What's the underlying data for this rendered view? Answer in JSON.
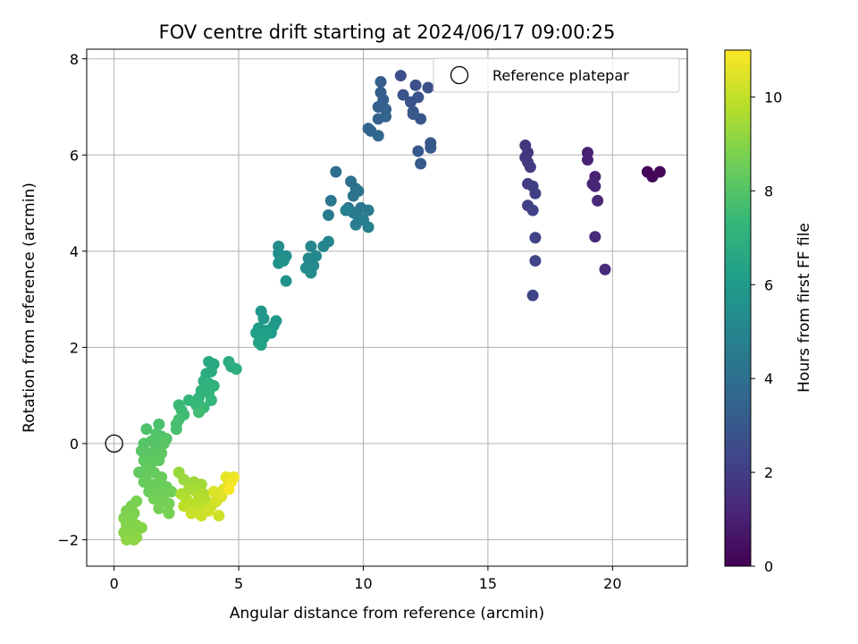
{
  "chart_data": {
    "type": "scatter",
    "title": "FOV centre drift starting at 2024/06/17 09:00:25",
    "xlabel": "Angular distance from reference (arcmin)",
    "ylabel": "Rotation from reference (arcmin)",
    "xlim": [
      -1.1,
      23.0
    ],
    "ylim": [
      -2.55,
      8.2
    ],
    "xticks": [
      0,
      5,
      10,
      15,
      20
    ],
    "yticks": [
      -2,
      0,
      2,
      4,
      6,
      8
    ],
    "grid": true,
    "legend": {
      "position": "top-right",
      "entries": [
        "Reference platepar"
      ]
    },
    "colorbar": {
      "label": "Hours from first FF file",
      "range": [
        0,
        11.0
      ],
      "ticks": [
        0,
        2,
        4,
        6,
        8,
        10
      ],
      "colormap": "viridis"
    },
    "reference_point": {
      "x": 0,
      "y": 0
    },
    "points": [
      {
        "x": 21.4,
        "y": 5.65,
        "h": 0.1
      },
      {
        "x": 21.6,
        "y": 5.55,
        "h": 0.15
      },
      {
        "x": 21.9,
        "y": 5.65,
        "h": 0.2
      },
      {
        "x": 19.0,
        "y": 6.05,
        "h": 1.0
      },
      {
        "x": 19.0,
        "y": 5.9,
        "h": 1.05
      },
      {
        "x": 19.3,
        "y": 5.55,
        "h": 1.1
      },
      {
        "x": 19.2,
        "y": 5.4,
        "h": 1.15
      },
      {
        "x": 19.3,
        "y": 5.35,
        "h": 1.2
      },
      {
        "x": 19.4,
        "y": 5.05,
        "h": 1.25
      },
      {
        "x": 19.3,
        "y": 4.3,
        "h": 1.3
      },
      {
        "x": 19.7,
        "y": 3.62,
        "h": 1.35
      },
      {
        "x": 16.5,
        "y": 6.2,
        "h": 1.7
      },
      {
        "x": 16.6,
        "y": 6.05,
        "h": 1.75
      },
      {
        "x": 16.5,
        "y": 5.95,
        "h": 1.8
      },
      {
        "x": 16.6,
        "y": 5.85,
        "h": 1.85
      },
      {
        "x": 16.7,
        "y": 5.75,
        "h": 1.9
      },
      {
        "x": 16.6,
        "y": 5.4,
        "h": 1.95
      },
      {
        "x": 16.8,
        "y": 5.35,
        "h": 2.0
      },
      {
        "x": 16.9,
        "y": 5.2,
        "h": 2.05
      },
      {
        "x": 16.6,
        "y": 4.95,
        "h": 2.1
      },
      {
        "x": 16.8,
        "y": 4.85,
        "h": 2.15
      },
      {
        "x": 16.9,
        "y": 4.28,
        "h": 2.2
      },
      {
        "x": 16.9,
        "y": 3.8,
        "h": 2.25
      },
      {
        "x": 16.8,
        "y": 3.08,
        "h": 2.3
      },
      {
        "x": 11.5,
        "y": 7.65,
        "h": 2.6
      },
      {
        "x": 12.1,
        "y": 7.45,
        "h": 2.65
      },
      {
        "x": 12.6,
        "y": 7.4,
        "h": 2.7
      },
      {
        "x": 11.6,
        "y": 7.25,
        "h": 2.75
      },
      {
        "x": 11.9,
        "y": 7.1,
        "h": 2.8
      },
      {
        "x": 12.2,
        "y": 7.2,
        "h": 2.85
      },
      {
        "x": 12.0,
        "y": 6.9,
        "h": 2.9
      },
      {
        "x": 12.3,
        "y": 6.75,
        "h": 2.95
      },
      {
        "x": 12.0,
        "y": 6.85,
        "h": 3.0
      },
      {
        "x": 12.7,
        "y": 6.25,
        "h": 3.0
      },
      {
        "x": 12.7,
        "y": 6.15,
        "h": 3.05
      },
      {
        "x": 12.2,
        "y": 6.08,
        "h": 3.1
      },
      {
        "x": 12.3,
        "y": 5.82,
        "h": 3.15
      },
      {
        "x": 10.7,
        "y": 7.52,
        "h": 3.2
      },
      {
        "x": 10.7,
        "y": 7.3,
        "h": 3.25
      },
      {
        "x": 10.8,
        "y": 7.15,
        "h": 3.3
      },
      {
        "x": 10.6,
        "y": 7.0,
        "h": 3.35
      },
      {
        "x": 10.9,
        "y": 6.95,
        "h": 3.4
      },
      {
        "x": 10.6,
        "y": 6.75,
        "h": 3.45
      },
      {
        "x": 10.9,
        "y": 6.8,
        "h": 3.5
      },
      {
        "x": 10.3,
        "y": 6.5,
        "h": 3.55
      },
      {
        "x": 10.2,
        "y": 6.55,
        "h": 3.6
      },
      {
        "x": 10.6,
        "y": 6.4,
        "h": 3.65
      },
      {
        "x": 8.9,
        "y": 5.65,
        "h": 4.0
      },
      {
        "x": 9.5,
        "y": 5.45,
        "h": 4.1
      },
      {
        "x": 9.7,
        "y": 5.3,
        "h": 4.15
      },
      {
        "x": 9.8,
        "y": 5.25,
        "h": 4.2
      },
      {
        "x": 9.6,
        "y": 5.15,
        "h": 4.25
      },
      {
        "x": 8.7,
        "y": 5.05,
        "h": 4.3
      },
      {
        "x": 9.9,
        "y": 4.9,
        "h": 4.35
      },
      {
        "x": 9.4,
        "y": 4.9,
        "h": 4.4
      },
      {
        "x": 10.2,
        "y": 4.85,
        "h": 4.45
      },
      {
        "x": 9.6,
        "y": 4.8,
        "h": 4.5
      },
      {
        "x": 8.6,
        "y": 4.75,
        "h": 4.55
      },
      {
        "x": 9.8,
        "y": 4.7,
        "h": 4.6
      },
      {
        "x": 10.0,
        "y": 4.65,
        "h": 4.65
      },
      {
        "x": 9.7,
        "y": 4.55,
        "h": 4.7
      },
      {
        "x": 10.2,
        "y": 4.5,
        "h": 4.75
      },
      {
        "x": 9.3,
        "y": 4.85,
        "h": 4.8
      },
      {
        "x": 8.6,
        "y": 4.2,
        "h": 5.0
      },
      {
        "x": 8.4,
        "y": 4.1,
        "h": 5.05
      },
      {
        "x": 7.9,
        "y": 4.1,
        "h": 5.1
      },
      {
        "x": 7.8,
        "y": 3.85,
        "h": 5.15
      },
      {
        "x": 8.1,
        "y": 3.9,
        "h": 5.2
      },
      {
        "x": 8.0,
        "y": 3.7,
        "h": 5.25
      },
      {
        "x": 7.7,
        "y": 3.65,
        "h": 5.3
      },
      {
        "x": 7.9,
        "y": 3.55,
        "h": 5.35
      },
      {
        "x": 6.6,
        "y": 4.1,
        "h": 5.4
      },
      {
        "x": 6.6,
        "y": 3.95,
        "h": 5.45
      },
      {
        "x": 6.9,
        "y": 3.9,
        "h": 5.5
      },
      {
        "x": 6.6,
        "y": 3.75,
        "h": 5.55
      },
      {
        "x": 6.8,
        "y": 3.8,
        "h": 5.6
      },
      {
        "x": 6.9,
        "y": 3.38,
        "h": 5.65
      },
      {
        "x": 5.9,
        "y": 2.75,
        "h": 5.8
      },
      {
        "x": 6.0,
        "y": 2.6,
        "h": 5.85
      },
      {
        "x": 6.5,
        "y": 2.55,
        "h": 5.9
      },
      {
        "x": 6.4,
        "y": 2.45,
        "h": 5.95
      },
      {
        "x": 5.8,
        "y": 2.4,
        "h": 6.0
      },
      {
        "x": 6.1,
        "y": 2.35,
        "h": 6.05
      },
      {
        "x": 6.3,
        "y": 2.3,
        "h": 6.1
      },
      {
        "x": 5.7,
        "y": 2.3,
        "h": 6.15
      },
      {
        "x": 6.0,
        "y": 2.2,
        "h": 6.2
      },
      {
        "x": 5.8,
        "y": 2.1,
        "h": 6.25
      },
      {
        "x": 5.9,
        "y": 2.05,
        "h": 6.3
      },
      {
        "x": 3.8,
        "y": 1.7,
        "h": 6.6
      },
      {
        "x": 4.0,
        "y": 1.65,
        "h": 6.65
      },
      {
        "x": 3.9,
        "y": 1.5,
        "h": 6.7
      },
      {
        "x": 3.7,
        "y": 1.45,
        "h": 6.75
      },
      {
        "x": 4.6,
        "y": 1.7,
        "h": 6.8
      },
      {
        "x": 4.7,
        "y": 1.6,
        "h": 6.85
      },
      {
        "x": 4.9,
        "y": 1.55,
        "h": 6.9
      },
      {
        "x": 3.6,
        "y": 1.3,
        "h": 6.95
      },
      {
        "x": 3.8,
        "y": 1.25,
        "h": 7.0
      },
      {
        "x": 4.0,
        "y": 1.2,
        "h": 7.05
      },
      {
        "x": 3.5,
        "y": 1.1,
        "h": 7.1
      },
      {
        "x": 3.8,
        "y": 1.05,
        "h": 7.15
      },
      {
        "x": 3.4,
        "y": 0.95,
        "h": 7.2
      },
      {
        "x": 3.9,
        "y": 0.9,
        "h": 7.25
      },
      {
        "x": 3.0,
        "y": 0.9,
        "h": 7.3
      },
      {
        "x": 3.3,
        "y": 0.8,
        "h": 7.35
      },
      {
        "x": 3.6,
        "y": 0.75,
        "h": 7.4
      },
      {
        "x": 2.6,
        "y": 0.8,
        "h": 7.45
      },
      {
        "x": 2.7,
        "y": 0.7,
        "h": 7.5
      },
      {
        "x": 2.8,
        "y": 0.6,
        "h": 7.55
      },
      {
        "x": 3.4,
        "y": 0.65,
        "h": 7.6
      },
      {
        "x": 2.6,
        "y": 0.5,
        "h": 7.65
      },
      {
        "x": 2.5,
        "y": 0.4,
        "h": 7.7
      },
      {
        "x": 2.5,
        "y": 0.3,
        "h": 7.75
      },
      {
        "x": 1.8,
        "y": 0.4,
        "h": 7.8
      },
      {
        "x": 1.3,
        "y": 0.3,
        "h": 7.85
      },
      {
        "x": 1.7,
        "y": 0.2,
        "h": 7.9
      },
      {
        "x": 1.9,
        "y": 0.15,
        "h": 7.95
      },
      {
        "x": 2.1,
        "y": 0.1,
        "h": 8.0
      },
      {
        "x": 1.2,
        "y": 0.0,
        "h": 8.0
      },
      {
        "x": 1.5,
        "y": 0.05,
        "h": 8.05
      },
      {
        "x": 1.7,
        "y": -0.05,
        "h": 8.05
      },
      {
        "x": 2.0,
        "y": 0.0,
        "h": 8.1
      },
      {
        "x": 1.1,
        "y": -0.15,
        "h": 8.1
      },
      {
        "x": 1.4,
        "y": -0.2,
        "h": 8.15
      },
      {
        "x": 1.6,
        "y": -0.25,
        "h": 8.15
      },
      {
        "x": 1.9,
        "y": -0.2,
        "h": 8.2
      },
      {
        "x": 1.2,
        "y": -0.35,
        "h": 8.2
      },
      {
        "x": 1.5,
        "y": -0.4,
        "h": 8.25
      },
      {
        "x": 1.8,
        "y": -0.35,
        "h": 8.25
      },
      {
        "x": 1.3,
        "y": -0.5,
        "h": 8.3
      },
      {
        "x": 1.0,
        "y": -0.6,
        "h": 8.3
      },
      {
        "x": 1.3,
        "y": -0.65,
        "h": 8.35
      },
      {
        "x": 1.6,
        "y": -0.6,
        "h": 8.35
      },
      {
        "x": 1.9,
        "y": -0.7,
        "h": 8.4
      },
      {
        "x": 1.2,
        "y": -0.8,
        "h": 8.4
      },
      {
        "x": 1.5,
        "y": -0.85,
        "h": 8.45
      },
      {
        "x": 1.8,
        "y": -0.8,
        "h": 8.45
      },
      {
        "x": 2.1,
        "y": -0.9,
        "h": 8.5
      },
      {
        "x": 1.4,
        "y": -1.0,
        "h": 8.5
      },
      {
        "x": 1.7,
        "y": -1.0,
        "h": 8.55
      },
      {
        "x": 2.0,
        "y": -1.05,
        "h": 8.55
      },
      {
        "x": 2.3,
        "y": -1.0,
        "h": 8.6
      },
      {
        "x": 1.6,
        "y": -1.15,
        "h": 8.6
      },
      {
        "x": 1.9,
        "y": -1.2,
        "h": 8.65
      },
      {
        "x": 2.2,
        "y": -1.25,
        "h": 8.65
      },
      {
        "x": 1.8,
        "y": -1.35,
        "h": 8.7
      },
      {
        "x": 2.2,
        "y": -1.45,
        "h": 8.7
      },
      {
        "x": 0.9,
        "y": -1.2,
        "h": 8.75
      },
      {
        "x": 0.7,
        "y": -1.3,
        "h": 8.75
      },
      {
        "x": 0.5,
        "y": -1.4,
        "h": 8.8
      },
      {
        "x": 0.8,
        "y": -1.45,
        "h": 8.8
      },
      {
        "x": 0.4,
        "y": -1.55,
        "h": 8.85
      },
      {
        "x": 0.7,
        "y": -1.6,
        "h": 8.85
      },
      {
        "x": 0.5,
        "y": -1.7,
        "h": 8.9
      },
      {
        "x": 0.9,
        "y": -1.7,
        "h": 8.9
      },
      {
        "x": 1.1,
        "y": -1.75,
        "h": 8.95
      },
      {
        "x": 0.4,
        "y": -1.85,
        "h": 8.95
      },
      {
        "x": 0.7,
        "y": -1.85,
        "h": 9.0
      },
      {
        "x": 0.6,
        "y": -1.95,
        "h": 9.0
      },
      {
        "x": 0.9,
        "y": -1.95,
        "h": 9.05
      },
      {
        "x": 0.8,
        "y": -2.0,
        "h": 9.05
      },
      {
        "x": 0.5,
        "y": -2.0,
        "h": 9.1
      },
      {
        "x": 2.6,
        "y": -0.6,
        "h": 9.3
      },
      {
        "x": 2.8,
        "y": -0.75,
        "h": 9.35
      },
      {
        "x": 3.2,
        "y": -0.8,
        "h": 9.4
      },
      {
        "x": 3.5,
        "y": -0.85,
        "h": 9.45
      },
      {
        "x": 3.0,
        "y": -0.95,
        "h": 9.5
      },
      {
        "x": 3.3,
        "y": -1.0,
        "h": 9.55
      },
      {
        "x": 2.7,
        "y": -1.05,
        "h": 9.6
      },
      {
        "x": 3.6,
        "y": -1.05,
        "h": 9.65
      },
      {
        "x": 2.9,
        "y": -1.15,
        "h": 9.7
      },
      {
        "x": 3.4,
        "y": -1.15,
        "h": 9.75
      },
      {
        "x": 3.7,
        "y": -1.2,
        "h": 9.8
      },
      {
        "x": 3.1,
        "y": -1.25,
        "h": 9.85
      },
      {
        "x": 2.8,
        "y": -1.3,
        "h": 9.9
      },
      {
        "x": 3.3,
        "y": -1.35,
        "h": 9.95
      },
      {
        "x": 3.6,
        "y": -1.35,
        "h": 10.0
      },
      {
        "x": 3.9,
        "y": -1.3,
        "h": 10.05
      },
      {
        "x": 3.1,
        "y": -1.45,
        "h": 10.1
      },
      {
        "x": 3.5,
        "y": -1.5,
        "h": 10.15
      },
      {
        "x": 4.2,
        "y": -1.5,
        "h": 10.2
      },
      {
        "x": 3.8,
        "y": -1.4,
        "h": 10.25
      },
      {
        "x": 4.1,
        "y": -1.2,
        "h": 10.3
      },
      {
        "x": 4.3,
        "y": -1.1,
        "h": 10.35
      },
      {
        "x": 4.0,
        "y": -1.0,
        "h": 10.4
      },
      {
        "x": 4.4,
        "y": -0.95,
        "h": 10.45
      },
      {
        "x": 4.6,
        "y": -0.85,
        "h": 10.55
      },
      {
        "x": 4.5,
        "y": -0.7,
        "h": 10.6
      },
      {
        "x": 4.8,
        "y": -0.7,
        "h": 10.7
      },
      {
        "x": 4.7,
        "y": -0.8,
        "h": 10.8
      },
      {
        "x": 4.6,
        "y": -0.95,
        "h": 10.9
      }
    ]
  }
}
